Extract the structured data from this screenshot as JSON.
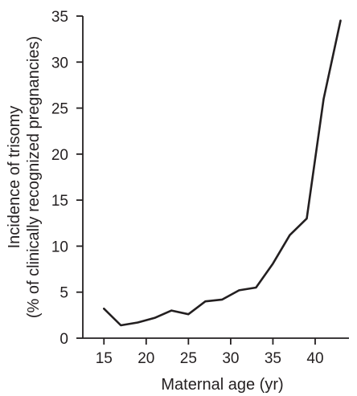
{
  "chart_data": {
    "type": "line",
    "title": "",
    "xlabel": "Maternal age (yr)",
    "ylabel": [
      "Incidence of trisomy",
      "(% of clinically recognized pregnancies)"
    ],
    "xlim": [
      12.5,
      44
    ],
    "ylim": [
      0,
      35
    ],
    "xticks": [
      15,
      20,
      25,
      30,
      35,
      40
    ],
    "yticks": [
      0,
      5,
      10,
      15,
      20,
      25,
      30,
      35
    ],
    "grid": false,
    "legend": "none",
    "line_color": "#231f20",
    "axis_color": "#231f20",
    "x": [
      15,
      17,
      19,
      21,
      23,
      25,
      27,
      29,
      31,
      33,
      35,
      37,
      39,
      41,
      43
    ],
    "y": [
      3.2,
      1.4,
      1.7,
      2.2,
      3.0,
      2.6,
      4.0,
      4.2,
      5.2,
      5.5,
      8.1,
      11.2,
      13.0,
      26.0,
      34.5
    ]
  }
}
